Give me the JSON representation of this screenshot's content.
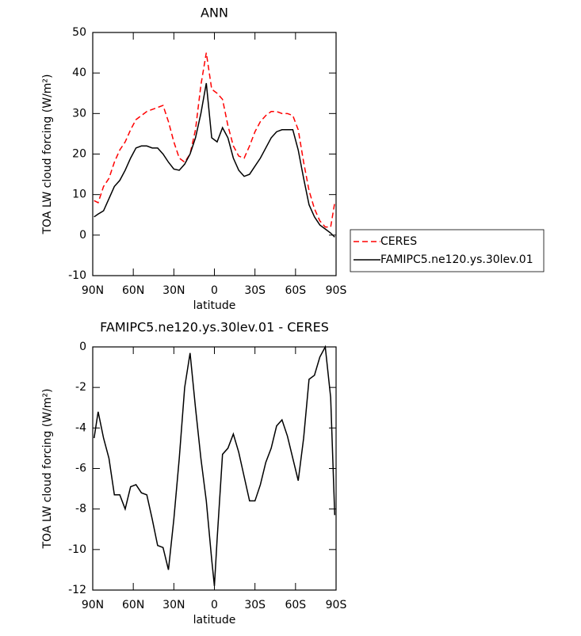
{
  "chart_data": [
    {
      "type": "line",
      "title": "ANN",
      "xlabel": "latitude",
      "ylabel": "TOA LW cloud forcing (W/m²)",
      "x": [
        89,
        86,
        82,
        78,
        74,
        70,
        66,
        62,
        58,
        54,
        50,
        46,
        42,
        38,
        34,
        30,
        26,
        22,
        18,
        14,
        10,
        6,
        2,
        -2,
        -6,
        -10,
        -14,
        -18,
        -22,
        -26,
        -30,
        -34,
        -38,
        -42,
        -46,
        -50,
        -54,
        -58,
        -62,
        -66,
        -70,
        -74,
        -78,
        -82,
        -86,
        -89
      ],
      "series": [
        {
          "name": "CERES",
          "color": "#ff0000",
          "line_style": "dashed",
          "values": [
            8.5,
            8,
            12,
            14,
            18,
            21,
            23,
            26,
            28.5,
            29.5,
            30.5,
            31,
            31.5,
            32,
            28,
            23,
            19,
            18,
            20,
            26,
            37,
            45,
            36,
            35,
            33.5,
            27,
            22,
            19.5,
            19,
            22,
            25.5,
            28,
            29.5,
            30.5,
            30.5,
            30,
            30,
            29.5,
            26,
            18,
            11,
            6.5,
            3.5,
            2,
            2,
            8
          ]
        },
        {
          "name": "FAMIPC5.ne120.ys.30lev.01",
          "color": "#000000",
          "line_style": "solid",
          "values": [
            4.5,
            5.2,
            6,
            9,
            12,
            13.5,
            16,
            19,
            21.5,
            22,
            22,
            21.5,
            21.5,
            20,
            18,
            16.3,
            16,
            17.5,
            20,
            24,
            30,
            37.5,
            24,
            23,
            26.5,
            24,
            19,
            16,
            14.5,
            15,
            17,
            19,
            21.5,
            24,
            25.5,
            26,
            26,
            26,
            21,
            14,
            7.5,
            4.5,
            2.5,
            1.5,
            0.5,
            -0.5
          ]
        }
      ],
      "xlim": [
        90,
        -90
      ],
      "xticks": [
        {
          "value": 90,
          "label": "90N"
        },
        {
          "value": 60,
          "label": "60N"
        },
        {
          "value": 30,
          "label": "30N"
        },
        0,
        {
          "value": -30,
          "label": "30S"
        },
        {
          "value": -60,
          "label": "60S"
        },
        {
          "value": -90,
          "label": "90S"
        }
      ],
      "ylim": [
        -10,
        50
      ],
      "yticks": [
        -10,
        0,
        10,
        20,
        30,
        40,
        50
      ],
      "legend_position": "right"
    },
    {
      "type": "line",
      "title": "FAMIPC5.ne120.ys.30lev.01 - CERES",
      "xlabel": "latitude",
      "ylabel": "TOA LW cloud forcing (W/m²)",
      "x": [
        89,
        86,
        82,
        78,
        74,
        70,
        66,
        62,
        58,
        54,
        50,
        46,
        42,
        38,
        34,
        30,
        26,
        22,
        18,
        14,
        10,
        6,
        2,
        0,
        -2,
        -6,
        -10,
        -14,
        -18,
        -22,
        -26,
        -30,
        -34,
        -38,
        -42,
        -46,
        -50,
        -54,
        -58,
        -62,
        -66,
        -70,
        -74,
        -78,
        -82,
        -86,
        -89
      ],
      "values": [
        -4.5,
        -3.2,
        -4.5,
        -5.5,
        -7.3,
        -7.3,
        -8.0,
        -6.9,
        -6.8,
        -7.2,
        -7.3,
        -8.5,
        -9.8,
        -9.9,
        -11.0,
        -8.5,
        -5.5,
        -2,
        -0.3,
        -3,
        -5.5,
        -7.6,
        -10.5,
        -11.8,
        -9.5,
        -5.3,
        -5.0,
        -4.3,
        -5.2,
        -6.4,
        -7.6,
        -7.6,
        -6.8,
        -5.7,
        -5,
        -3.9,
        -3.6,
        -4.4,
        -5.5,
        -6.6,
        -4.5,
        -1.6,
        -1.4,
        -0.5,
        0,
        -2.5,
        -8.3
      ],
      "color": "#000000",
      "xlim": [
        90,
        -90
      ],
      "xticks": [
        {
          "value": 90,
          "label": "90N"
        },
        {
          "value": 60,
          "label": "60N"
        },
        {
          "value": 30,
          "label": "30N"
        },
        0,
        {
          "value": -30,
          "label": "30S"
        },
        {
          "value": -60,
          "label": "60S"
        },
        {
          "value": -90,
          "label": "90S"
        }
      ],
      "ylim": [
        -12,
        0
      ],
      "yticks": [
        -12,
        -10,
        -8,
        -6,
        -4,
        -2,
        0
      ]
    }
  ]
}
